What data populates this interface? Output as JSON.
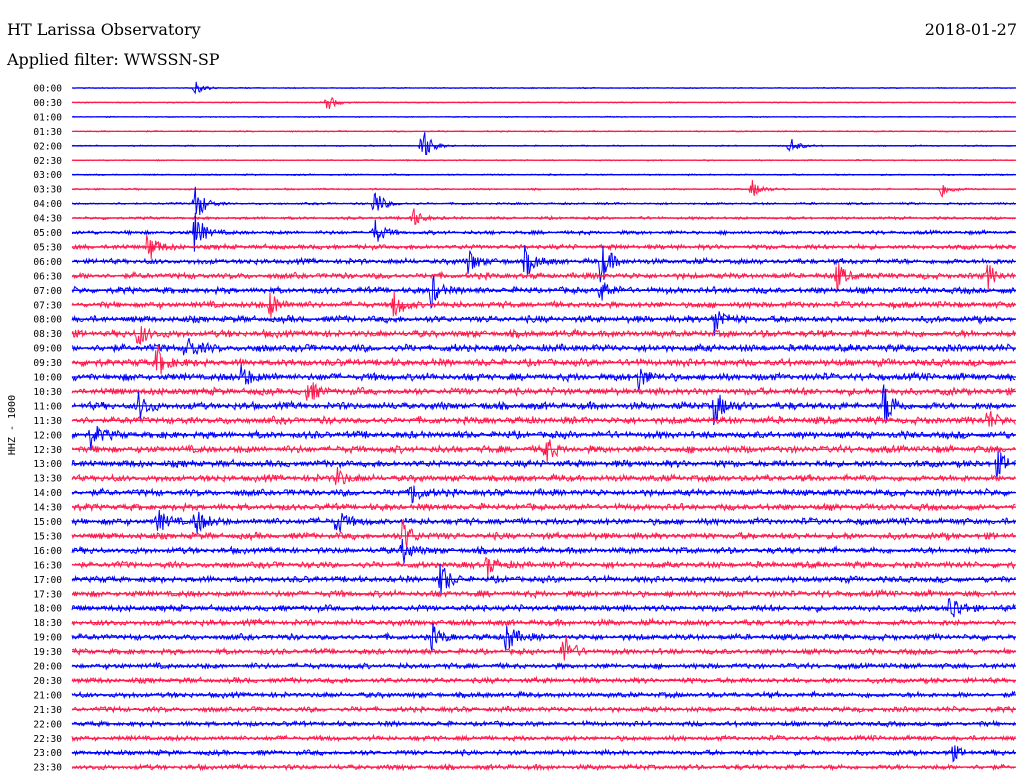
{
  "header": {
    "title": "HT Larissa Observatory",
    "date": "2018-01-27",
    "filter": "Applied filter: WWSSN-SP"
  },
  "chart_data": {
    "type": "line",
    "subtype": "helicorder",
    "channel_label": "HHZ - 1000",
    "time_labels": [
      "00:00",
      "00:30",
      "01:00",
      "01:30",
      "02:00",
      "02:30",
      "03:00",
      "03:30",
      "04:00",
      "04:30",
      "05:00",
      "05:30",
      "06:00",
      "06:30",
      "07:00",
      "07:30",
      "08:00",
      "08:30",
      "09:00",
      "09:30",
      "10:00",
      "10:30",
      "11:00",
      "11:30",
      "12:00",
      "12:30",
      "13:00",
      "13:30",
      "14:00",
      "14:30",
      "15:00",
      "15:30",
      "16:00",
      "16:30",
      "17:00",
      "17:30",
      "18:00",
      "18:30",
      "19:00",
      "19:30",
      "20:00",
      "20:30",
      "21:00",
      "21:30",
      "22:00",
      "22:30",
      "23:00",
      "23:30"
    ],
    "colors": {
      "even_trace": "#0000ff",
      "odd_trace": "#ff1a4d"
    },
    "noise_level": [
      0.5,
      0.5,
      0.5,
      0.6,
      0.6,
      0.6,
      0.7,
      0.8,
      1.0,
      1.3,
      1.8,
      2.3,
      2.6,
      2.8,
      3.0,
      3.0,
      3.2,
      3.4,
      3.5,
      3.5,
      3.5,
      3.4,
      3.5,
      3.4,
      3.4,
      3.4,
      3.3,
      3.2,
      3.2,
      3.1,
      3.2,
      3.1,
      3.0,
      3.0,
      3.0,
      3.0,
      3.0,
      2.9,
      2.8,
      2.7,
      2.6,
      2.6,
      2.6,
      2.5,
      2.4,
      2.4,
      2.4,
      2.4
    ],
    "events": [
      {
        "line": 0,
        "x": 0.13,
        "amp": 7
      },
      {
        "line": 1,
        "x": 0.27,
        "amp": 9
      },
      {
        "line": 4,
        "x": 0.37,
        "amp": 22
      },
      {
        "line": 4,
        "x": 0.76,
        "amp": 10
      },
      {
        "line": 7,
        "x": 0.72,
        "amp": 10
      },
      {
        "line": 7,
        "x": 0.92,
        "amp": 10
      },
      {
        "line": 8,
        "x": 0.13,
        "amp": 22
      },
      {
        "line": 8,
        "x": 0.32,
        "amp": 16
      },
      {
        "line": 9,
        "x": 0.36,
        "amp": 12
      },
      {
        "line": 10,
        "x": 0.13,
        "amp": 22
      },
      {
        "line": 10,
        "x": 0.32,
        "amp": 14
      },
      {
        "line": 11,
        "x": 0.08,
        "amp": 18
      },
      {
        "line": 12,
        "x": 0.42,
        "amp": 14
      },
      {
        "line": 12,
        "x": 0.48,
        "amp": 18
      },
      {
        "line": 12,
        "x": 0.56,
        "amp": 24
      },
      {
        "line": 13,
        "x": 0.81,
        "amp": 14
      },
      {
        "line": 13,
        "x": 0.97,
        "amp": 12
      },
      {
        "line": 14,
        "x": 0.38,
        "amp": 18
      },
      {
        "line": 14,
        "x": 0.56,
        "amp": 12
      },
      {
        "line": 15,
        "x": 0.21,
        "amp": 14
      },
      {
        "line": 15,
        "x": 0.34,
        "amp": 14
      },
      {
        "line": 16,
        "x": 0.68,
        "amp": 18
      },
      {
        "line": 17,
        "x": 0.07,
        "amp": 14
      },
      {
        "line": 18,
        "x": 0.12,
        "amp": 16
      },
      {
        "line": 19,
        "x": 0.09,
        "amp": 18
      },
      {
        "line": 20,
        "x": 0.18,
        "amp": 14
      },
      {
        "line": 20,
        "x": 0.6,
        "amp": 14
      },
      {
        "line": 21,
        "x": 0.25,
        "amp": 12
      },
      {
        "line": 22,
        "x": 0.07,
        "amp": 14
      },
      {
        "line": 22,
        "x": 0.68,
        "amp": 20
      },
      {
        "line": 22,
        "x": 0.86,
        "amp": 24
      },
      {
        "line": 23,
        "x": 0.97,
        "amp": 12
      },
      {
        "line": 24,
        "x": 0.02,
        "amp": 14
      },
      {
        "line": 25,
        "x": 0.5,
        "amp": 16
      },
      {
        "line": 26,
        "x": 0.98,
        "amp": 14
      },
      {
        "line": 27,
        "x": 0.28,
        "amp": 12
      },
      {
        "line": 28,
        "x": 0.36,
        "amp": 14
      },
      {
        "line": 30,
        "x": 0.09,
        "amp": 12
      },
      {
        "line": 30,
        "x": 0.13,
        "amp": 16
      },
      {
        "line": 30,
        "x": 0.28,
        "amp": 16
      },
      {
        "line": 31,
        "x": 0.35,
        "amp": 18
      },
      {
        "line": 32,
        "x": 0.35,
        "amp": 14
      },
      {
        "line": 33,
        "x": 0.44,
        "amp": 12
      },
      {
        "line": 34,
        "x": 0.39,
        "amp": 18
      },
      {
        "line": 36,
        "x": 0.93,
        "amp": 16
      },
      {
        "line": 38,
        "x": 0.38,
        "amp": 14
      },
      {
        "line": 38,
        "x": 0.46,
        "amp": 18
      },
      {
        "line": 39,
        "x": 0.52,
        "amp": 20
      },
      {
        "line": 46,
        "x": 0.93,
        "amp": 10
      }
    ]
  }
}
